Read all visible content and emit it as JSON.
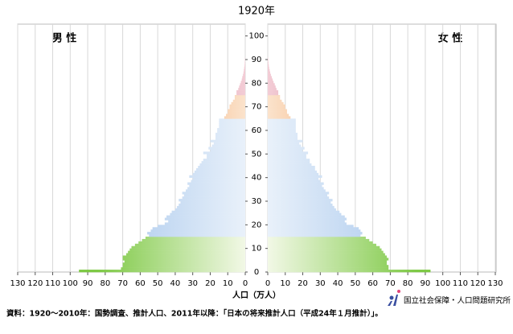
{
  "chart_data": {
    "type": "pyramid",
    "title": "1920年",
    "left_label": "男 性",
    "right_label": "女 性",
    "xlabel": "人口（万人）",
    "source": "資料：1920～2010年：国勢調査、推計人口、2011年以降：「日本の将来推計人口（平成24年１月推計）」。",
    "logo": "国立社会保障・人口問題研究所",
    "xlim": [
      0,
      130
    ],
    "xticks": [
      0,
      10,
      20,
      30,
      40,
      50,
      60,
      70,
      80,
      90,
      100,
      110,
      120,
      130
    ],
    "ylim": [
      0,
      105
    ],
    "yticks": [
      0,
      10,
      20,
      30,
      40,
      50,
      60,
      70,
      80,
      90,
      100
    ],
    "grid": true,
    "age_groups": [
      {
        "from": 0,
        "to": 14,
        "color": "#7cc843",
        "color_light": "#f2f8e6"
      },
      {
        "from": 15,
        "to": 64,
        "color": "#a6c6ec",
        "color_light": "#e9f1fa"
      },
      {
        "from": 65,
        "to": 74,
        "color": "#ee7f2d",
        "color_light": "#fbe3cc"
      },
      {
        "from": 75,
        "to": 90,
        "color": "#bf4a68",
        "color_light": "#f3cdd6"
      }
    ],
    "ages": [
      0,
      1,
      2,
      3,
      4,
      5,
      6,
      7,
      8,
      9,
      10,
      11,
      12,
      13,
      14,
      15,
      16,
      17,
      18,
      19,
      20,
      21,
      22,
      23,
      24,
      25,
      26,
      27,
      28,
      29,
      30,
      31,
      32,
      33,
      34,
      35,
      36,
      37,
      38,
      39,
      40,
      41,
      42,
      43,
      44,
      45,
      46,
      47,
      48,
      49,
      50,
      51,
      52,
      53,
      54,
      55,
      56,
      57,
      58,
      59,
      60,
      61,
      62,
      63,
      64,
      65,
      66,
      67,
      68,
      69,
      70,
      71,
      72,
      73,
      74,
      75,
      76,
      77,
      78,
      79,
      80,
      81,
      82,
      83,
      84,
      85,
      86,
      87,
      88,
      89,
      90
    ],
    "series": [
      {
        "name": "男",
        "values": [
          95,
          71,
          70,
          70,
          69,
          70,
          70,
          68,
          67,
          66,
          65,
          63,
          61,
          59,
          57,
          55,
          56,
          54,
          53,
          50,
          46,
          44,
          46,
          45,
          43,
          42,
          40,
          39,
          38,
          37,
          38,
          36,
          35,
          36,
          34,
          33,
          32,
          33,
          31,
          30,
          32,
          30,
          29,
          28,
          27,
          26,
          25,
          24,
          22,
          22,
          24,
          20,
          21,
          19,
          18,
          20,
          17,
          17,
          17,
          16,
          16,
          15,
          15,
          15,
          15,
          12,
          11,
          10,
          10,
          9,
          9,
          8,
          7,
          6,
          6,
          5,
          5,
          4,
          3.5,
          3,
          2.5,
          2,
          1.7,
          1.3,
          1,
          0.8,
          0.6,
          0.4,
          0.3,
          0.2,
          0.1
        ]
      },
      {
        "name": "女",
        "values": [
          93,
          69,
          69,
          68,
          68,
          69,
          68,
          67,
          66,
          65,
          64,
          62,
          60,
          58,
          56,
          53,
          54,
          53,
          52,
          49,
          45,
          44,
          45,
          44,
          42,
          41,
          39,
          38,
          37,
          36,
          37,
          35,
          34,
          35,
          33,
          32,
          31,
          32,
          30,
          29,
          31,
          29,
          28,
          27,
          27,
          25,
          24,
          24,
          22,
          22,
          23,
          20,
          21,
          19,
          18,
          20,
          17,
          17,
          17,
          16,
          16,
          16,
          16,
          16,
          16,
          13,
          12,
          11,
          11,
          10,
          10,
          9,
          8,
          7,
          7,
          6,
          6,
          5,
          4.5,
          4,
          3.3,
          2.8,
          2.3,
          1.8,
          1.4,
          1.1,
          0.8,
          0.6,
          0.4,
          0.3,
          0.2
        ]
      }
    ]
  }
}
